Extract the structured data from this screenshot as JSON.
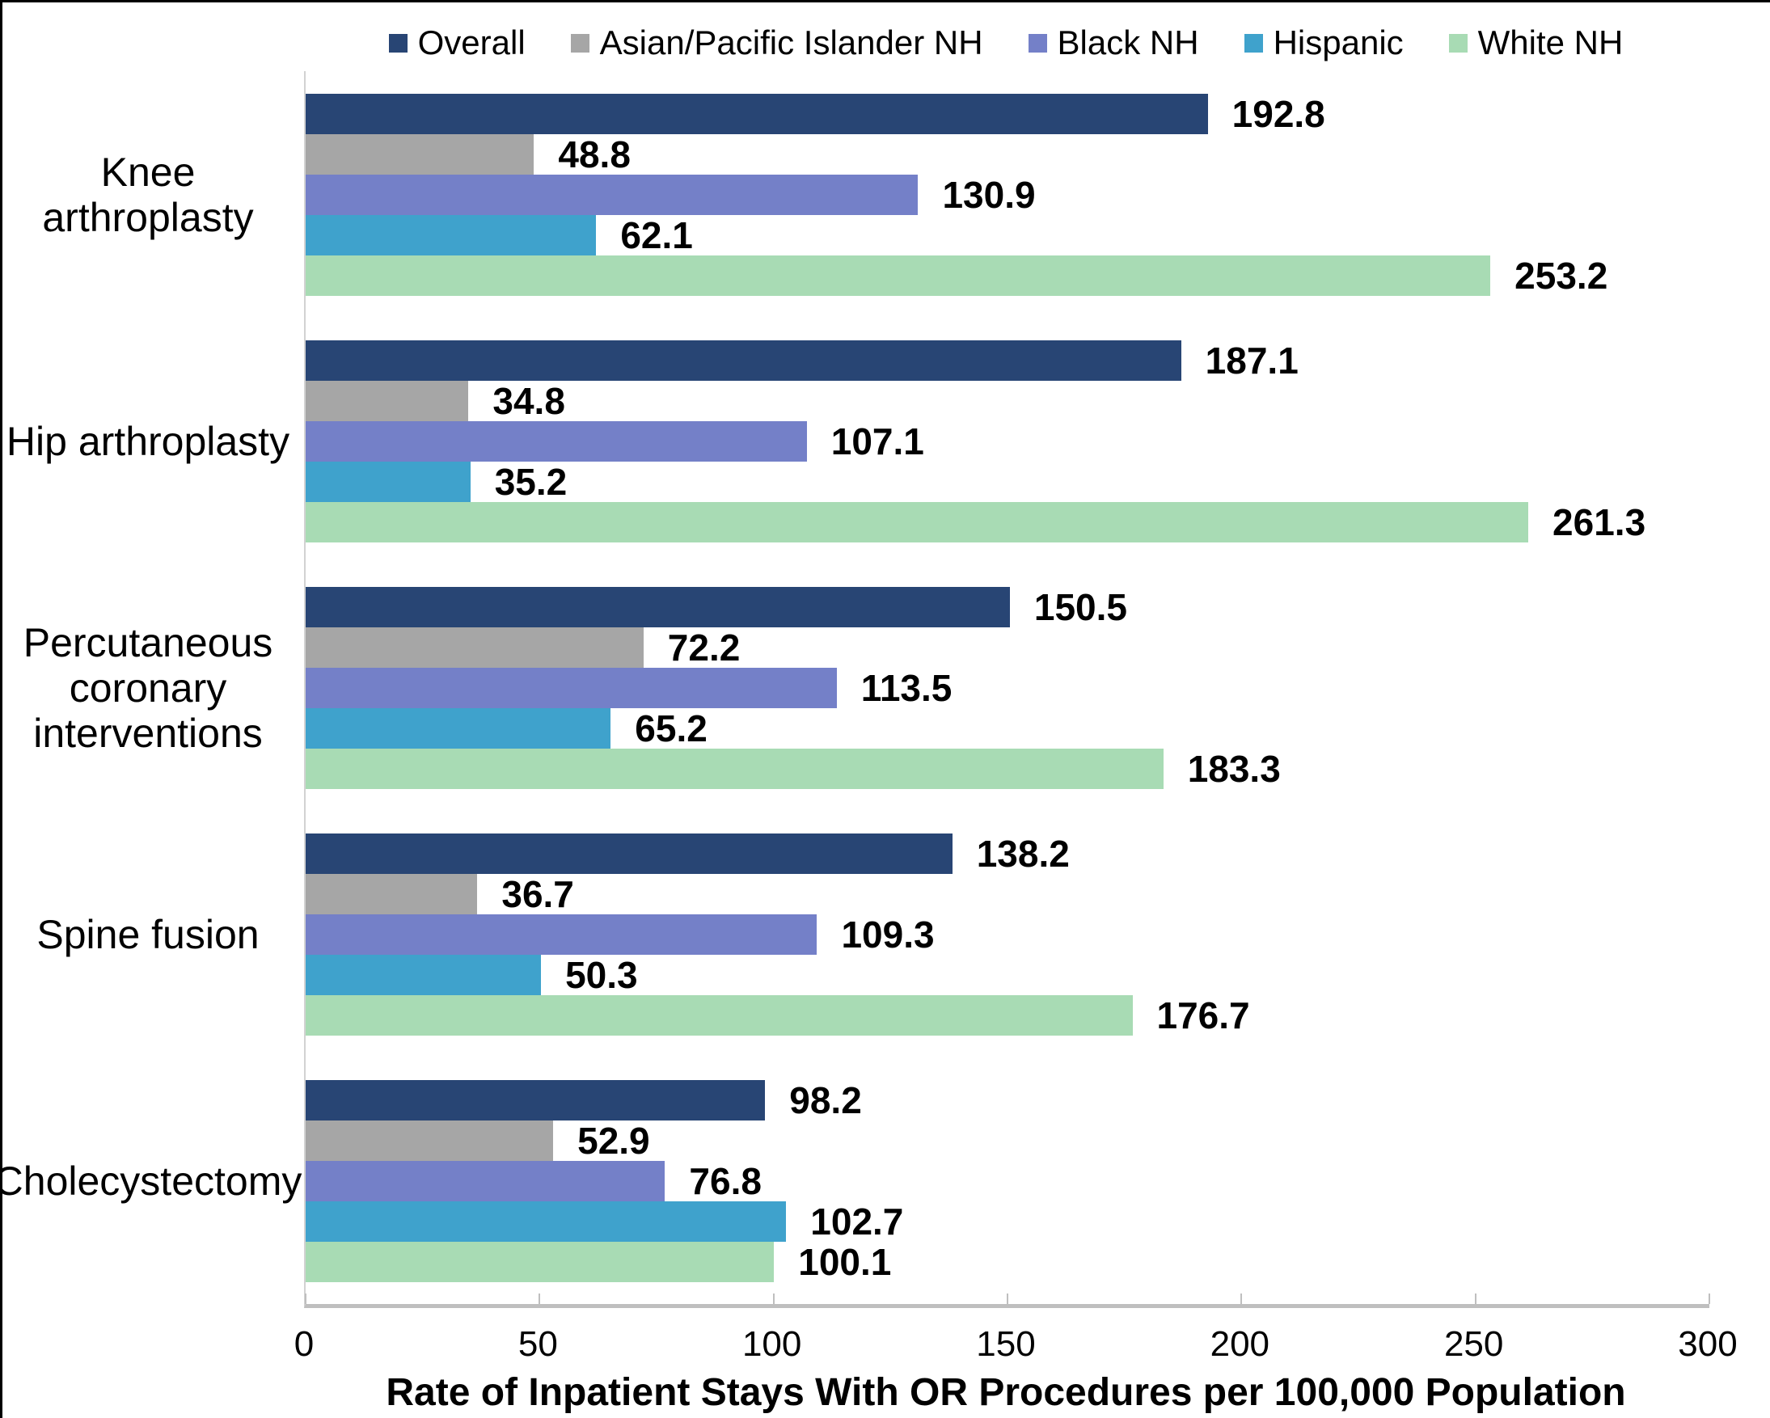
{
  "chart_data": {
    "type": "bar",
    "orientation": "horizontal",
    "xlabel": "Rate of Inpatient Stays With OR Procedures per 100,000 Population",
    "xlim": [
      0,
      300
    ],
    "xticks": [
      0,
      50,
      100,
      150,
      200,
      250,
      300
    ],
    "grid": false,
    "legend_position": "top",
    "value_labels": true,
    "categories": [
      "Knee arthroplasty",
      "Hip arthroplasty",
      "Percutaneous coronary interventions",
      "Spine fusion",
      "Cholecystectomy"
    ],
    "series": [
      {
        "name": "Overall",
        "color": "#284574",
        "values": [
          192.8,
          187.1,
          150.5,
          138.2,
          98.2
        ]
      },
      {
        "name": "Asian/Pacific Islander NH",
        "color": "#A6A6A6",
        "values": [
          48.8,
          34.8,
          72.2,
          36.7,
          52.9
        ]
      },
      {
        "name": "Black NH",
        "color": "#7480C8",
        "values": [
          130.9,
          107.1,
          113.5,
          109.3,
          76.8
        ]
      },
      {
        "name": "Hispanic",
        "color": "#3FA2CC",
        "values": [
          62.1,
          35.2,
          65.2,
          50.3,
          102.7
        ]
      },
      {
        "name": "White NH",
        "color": "#A8DBB4",
        "values": [
          253.2,
          261.3,
          183.3,
          176.7,
          100.1
        ]
      }
    ]
  },
  "axis_colors": {
    "baseline": "#bfbfbf",
    "tick": "#bfbfbf",
    "y_axis_line": "#d2d2d2"
  }
}
